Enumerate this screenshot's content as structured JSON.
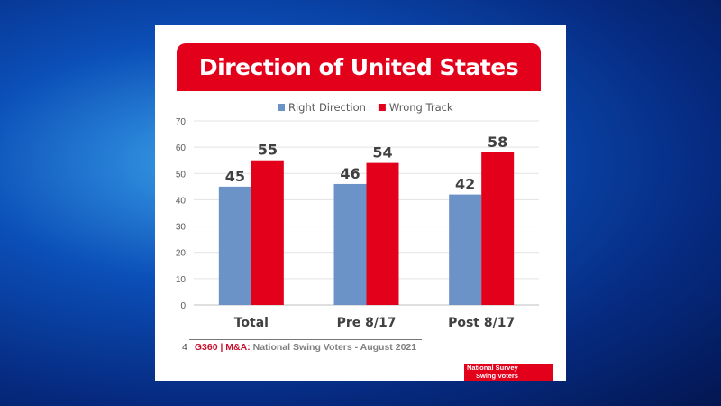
{
  "chart_data": {
    "type": "bar",
    "title": "Direction of United States",
    "categories": [
      "Total",
      "Pre 8/17",
      "Post 8/17"
    ],
    "series": [
      {
        "name": "Right Direction",
        "values": [
          45,
          46,
          42
        ],
        "color": "#6b93c8"
      },
      {
        "name": "Wrong Track",
        "values": [
          55,
          54,
          58
        ],
        "color": "#e3001b"
      }
    ],
    "yticks": [
      0,
      10,
      20,
      30,
      40,
      50,
      60,
      70
    ],
    "ylim": [
      0,
      70
    ],
    "grid": true,
    "legend": "top-center",
    "xlabel": "",
    "ylabel": ""
  },
  "footer": {
    "page": "4",
    "brand": "G360 | M&A:",
    "text": " National Swing Voters - August 2021"
  },
  "badge": {
    "line1": "National Survey",
    "line2": "Swing Voters"
  }
}
